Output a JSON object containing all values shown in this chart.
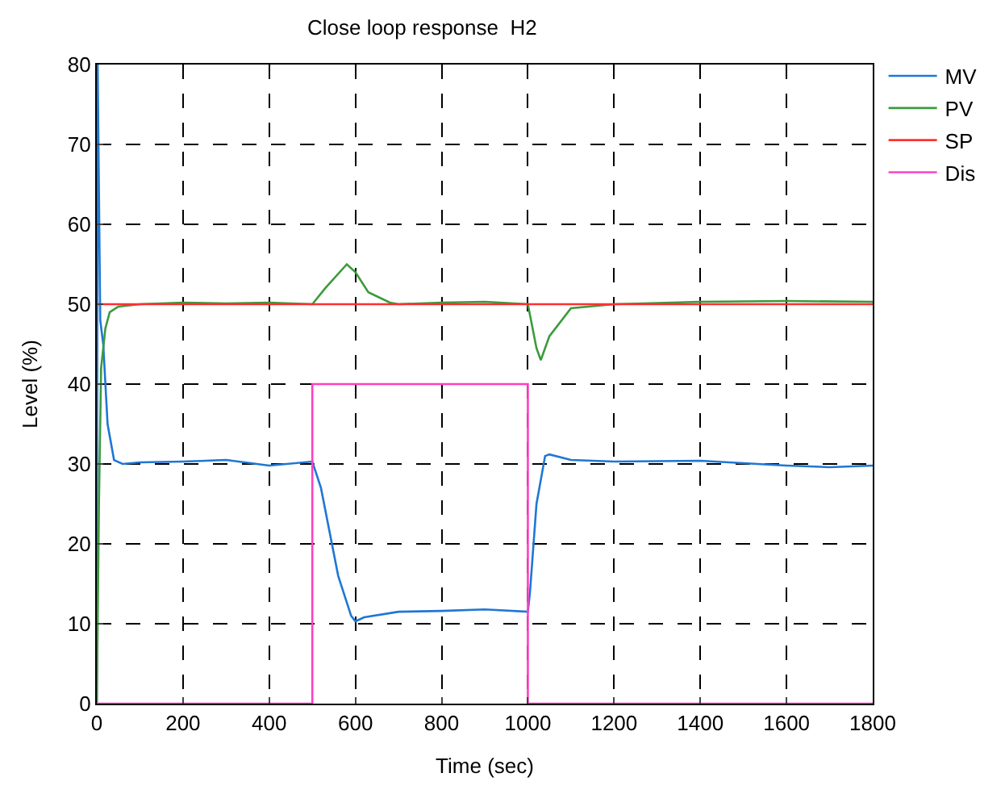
{
  "chart_data": {
    "type": "line",
    "title": "Close loop response  H2",
    "xlabel": "Time (sec)",
    "ylabel": "Level (%)",
    "xlim": [
      0,
      1800
    ],
    "xticks": [
      0,
      200,
      400,
      600,
      800,
      1000,
      1200,
      1400,
      1600,
      1800
    ],
    "ylim": [
      0,
      80
    ],
    "yticks": [
      0,
      10,
      20,
      30,
      40,
      50,
      60,
      70,
      80
    ],
    "grid": true,
    "legend": "top right",
    "line_style": "solid",
    "series": [
      {
        "name": "MV",
        "color": "#1f77d4",
        "x": [
          0,
          2,
          8,
          15,
          25,
          40,
          60,
          100,
          200,
          300,
          400,
          500,
          520,
          560,
          590,
          600,
          620,
          700,
          800,
          900,
          1000,
          1005,
          1020,
          1040,
          1050,
          1100,
          1200,
          1400,
          1600,
          1700,
          1800
        ],
        "values": [
          0,
          80,
          48,
          45,
          35,
          30.5,
          30,
          30.2,
          30.3,
          30.5,
          29.8,
          30.3,
          27,
          16,
          11,
          10.3,
          10.8,
          11.5,
          11.6,
          11.8,
          11.5,
          14,
          25,
          31,
          31.2,
          30.5,
          30.3,
          30.4,
          29.8,
          29.6,
          29.8
        ]
      },
      {
        "name": "PV",
        "color": "#3c9a3c",
        "x": [
          0,
          5,
          10,
          20,
          30,
          50,
          100,
          200,
          300,
          400,
          500,
          530,
          580,
          600,
          630,
          680,
          700,
          800,
          900,
          1000,
          1020,
          1030,
          1050,
          1100,
          1200,
          1400,
          1600,
          1800
        ],
        "values": [
          0,
          25,
          42,
          47,
          49,
          49.7,
          50,
          50.2,
          50.1,
          50.2,
          50,
          52,
          55,
          54,
          51.5,
          50.2,
          50,
          50.2,
          50.3,
          50,
          44.5,
          43,
          46,
          49.5,
          50,
          50.3,
          50.4,
          50.3
        ]
      },
      {
        "name": "SP",
        "color": "#ff3030",
        "x": [
          0,
          1800
        ],
        "values": [
          50,
          50
        ]
      },
      {
        "name": "Dis",
        "color": "#ff40c0",
        "x": [
          0,
          500,
          500,
          1000,
          1000,
          1800
        ],
        "values": [
          0,
          0,
          40,
          40,
          0,
          0
        ]
      }
    ]
  }
}
